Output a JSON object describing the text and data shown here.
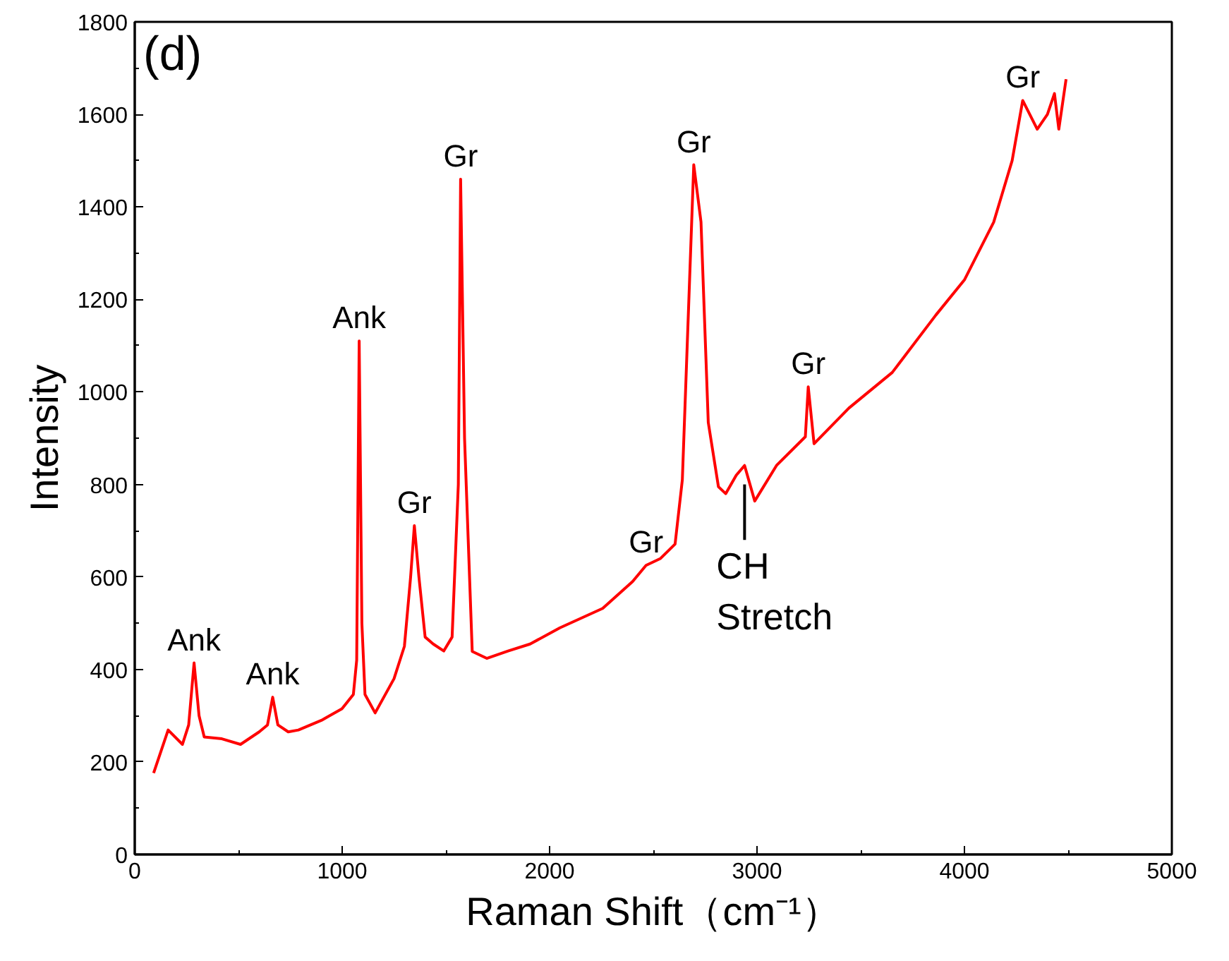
{
  "chart_data": {
    "type": "line",
    "xlabel": "Raman Shift（cm⁻¹）",
    "ylabel": "Intensity",
    "x": [
      91,
      161,
      230,
      260,
      286,
      310,
      335,
      420,
      510,
      600,
      640,
      665,
      690,
      740,
      789,
      900,
      999,
      1054,
      1070,
      1082,
      1095,
      1110,
      1159,
      1250,
      1300,
      1330,
      1348,
      1370,
      1400,
      1439,
      1490,
      1530,
      1560,
      1571,
      1590,
      1627,
      1697,
      1800,
      1906,
      2050,
      2256,
      2400,
      2465,
      2535,
      2605,
      2640,
      2675,
      2695,
      2730,
      2765,
      2814,
      2849,
      2900,
      2940,
      2989,
      3094,
      3233,
      3247,
      3275,
      3443,
      3652,
      3862,
      4001,
      4141,
      4230,
      4281,
      4351,
      4400,
      4434,
      4455,
      4490
    ],
    "series": [
      {
        "color": "#ff0000",
        "values": [
          176,
          269,
          238,
          280,
          414,
          300,
          254,
          250,
          238,
          265,
          280,
          340,
          280,
          265,
          269,
          290,
          315,
          346,
          420,
          1110,
          500,
          346,
          306,
          380,
          450,
          600,
          711,
          600,
          470,
          455,
          440,
          470,
          800,
          1460,
          900,
          439,
          424,
          440,
          455,
          490,
          532,
          590,
          625,
          640,
          671,
          810,
          1243,
          1491,
          1367,
          934,
          795,
          780,
          820,
          841,
          764,
          841,
          903,
          1011,
          888,
          965,
          1042,
          1166,
          1243,
          1367,
          1500,
          1630,
          1568,
          1600,
          1645,
          1568,
          1676
        ]
      }
    ],
    "xlim": [
      0,
      5000
    ],
    "ylim": [
      0,
      1800
    ],
    "xticks": [
      0,
      1000,
      2000,
      3000,
      4000,
      5000
    ],
    "yticks": [
      0,
      200,
      400,
      600,
      800,
      1000,
      1200,
      1400,
      1600,
      1800
    ],
    "grid": false,
    "marker": "none",
    "line_style": "solid",
    "annotations": [
      "(d)",
      {
        "text": "Ank",
        "x": 286,
        "y": 414
      },
      {
        "text": "Ank",
        "x": 665,
        "y": 340
      },
      {
        "text": "Ank",
        "x": 1082,
        "y": 1110
      },
      {
        "text": "Gr",
        "x": 1348,
        "y": 711
      },
      {
        "text": "Gr",
        "x": 1571,
        "y": 1460
      },
      {
        "text": "Gr",
        "x": 2465,
        "y": 625
      },
      {
        "text": "Gr",
        "x": 2695,
        "y": 1491
      },
      {
        "text": "CH\nStretch",
        "x": 2940,
        "y": 800
      },
      {
        "text": "Gr",
        "x": 3247,
        "y": 1011
      },
      {
        "text": "Gr",
        "x": 4281,
        "y": 1630
      }
    ]
  }
}
